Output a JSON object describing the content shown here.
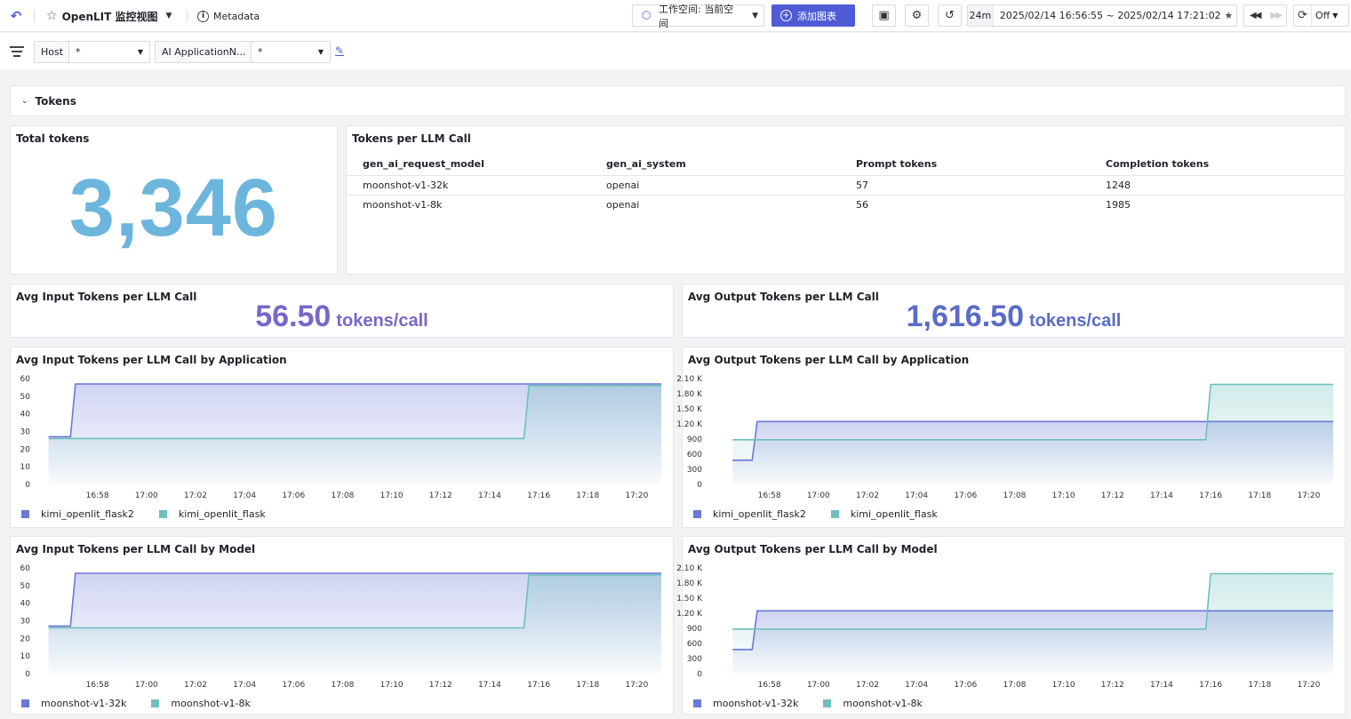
{
  "header": {
    "title": "OpenLIT 监控视图",
    "metadata_label": "Metadata",
    "workspace_label": "工作空间: 当前空间",
    "add_chart_label": "添加图表",
    "time_quick": "24m",
    "time_range": "2025/02/14 16:56:55 ~ 2025/02/14 17:21:02",
    "refresh_label": "Off"
  },
  "filters": [
    {
      "label": "Host",
      "value": "*"
    },
    {
      "label": "AI ApplicationN...",
      "value": "*"
    }
  ],
  "row": {
    "title": "Tokens"
  },
  "total_tokens": {
    "title": "Total tokens",
    "value": "3,346"
  },
  "tokens_table": {
    "title": "Tokens per LLM Call",
    "columns": [
      "gen_ai_request_model",
      "gen_ai_system",
      "Prompt tokens",
      "Completion tokens"
    ],
    "rows": [
      [
        "moonshot-v1-32k",
        "openai",
        "57",
        "1248"
      ],
      [
        "moonshot-v1-8k",
        "openai",
        "56",
        "1985"
      ]
    ]
  },
  "avg_input": {
    "title": "Avg Input Tokens per LLM Call",
    "value": "56.50",
    "unit": "tokens/call"
  },
  "avg_output": {
    "title": "Avg Output Tokens per LLM Call",
    "value": "1,616.50",
    "unit": "tokens/call"
  },
  "colors": {
    "series_a": "#6a78d8",
    "series_b": "#6fbfbe",
    "accent": "#4f5bd5"
  },
  "chart_data": [
    {
      "type": "line",
      "title": "Avg Input Tokens per LLM Call by Application",
      "x_ticks": [
        "16:58",
        "17:00",
        "17:02",
        "17:04",
        "17:06",
        "17:08",
        "17:10",
        "17:12",
        "17:14",
        "17:16",
        "17:18",
        "17:20"
      ],
      "y_ticks": [
        "0",
        "10",
        "20",
        "30",
        "40",
        "50",
        "60"
      ],
      "ylim": [
        0,
        60
      ],
      "xlim": [
        56.2,
        81.0
      ],
      "series": [
        {
          "name": "kimi_openlit_flask2",
          "color": "#6a78d8",
          "x": [
            56.0,
            56.9,
            57.1,
            81.0
          ],
          "y": [
            27,
            27,
            57,
            57
          ]
        },
        {
          "name": "kimi_openlit_flask",
          "color": "#6fbfbe",
          "x": [
            56.0,
            75.4,
            75.6,
            81.0
          ],
          "y": [
            26,
            26,
            56,
            56
          ]
        }
      ]
    },
    {
      "type": "line",
      "title": "Avg Output Tokens per LLM Call by Application",
      "x_ticks": [
        "16:58",
        "17:00",
        "17:02",
        "17:04",
        "17:06",
        "17:08",
        "17:10",
        "17:12",
        "17:14",
        "17:16",
        "17:18",
        "17:20"
      ],
      "y_ticks": [
        "0",
        "300",
        "600",
        "900",
        "1.20 K",
        "1.50 K",
        "1.80 K",
        "2.10 K"
      ],
      "ylim": [
        0,
        2100
      ],
      "xlim": [
        56.2,
        81.0
      ],
      "series": [
        {
          "name": "kimi_openlit_flask2",
          "color": "#6a78d8",
          "x": [
            56.5,
            57.3,
            57.5,
            81.0
          ],
          "y": [
            480,
            480,
            1248,
            1248
          ]
        },
        {
          "name": "kimi_openlit_flask",
          "color": "#6fbfbe",
          "x": [
            56.5,
            75.8,
            76.0,
            81.0
          ],
          "y": [
            885,
            885,
            1985,
            1985
          ]
        }
      ]
    },
    {
      "type": "line",
      "title": "Avg Input Tokens per LLM Call by Model",
      "x_ticks": [
        "16:58",
        "17:00",
        "17:02",
        "17:04",
        "17:06",
        "17:08",
        "17:10",
        "17:12",
        "17:14",
        "17:16",
        "17:18",
        "17:20"
      ],
      "y_ticks": [
        "0",
        "10",
        "20",
        "30",
        "40",
        "50",
        "60"
      ],
      "ylim": [
        0,
        60
      ],
      "xlim": [
        56.2,
        81.0
      ],
      "series": [
        {
          "name": "moonshot-v1-32k",
          "color": "#6a78d8",
          "x": [
            56.0,
            56.9,
            57.1,
            81.0
          ],
          "y": [
            27,
            27,
            57,
            57
          ]
        },
        {
          "name": "moonshot-v1-8k",
          "color": "#6fbfbe",
          "x": [
            56.0,
            75.4,
            75.6,
            81.0
          ],
          "y": [
            26,
            26,
            56,
            56
          ]
        }
      ]
    },
    {
      "type": "line",
      "title": "Avg Output Tokens per LLM Call by Model",
      "x_ticks": [
        "16:58",
        "17:00",
        "17:02",
        "17:04",
        "17:06",
        "17:08",
        "17:10",
        "17:12",
        "17:14",
        "17:16",
        "17:18",
        "17:20"
      ],
      "y_ticks": [
        "0",
        "300",
        "600",
        "900",
        "1.20 K",
        "1.50 K",
        "1.80 K",
        "2.10 K"
      ],
      "ylim": [
        0,
        2100
      ],
      "xlim": [
        56.2,
        81.0
      ],
      "series": [
        {
          "name": "moonshot-v1-32k",
          "color": "#6a78d8",
          "x": [
            56.5,
            57.3,
            57.5,
            81.0
          ],
          "y": [
            480,
            480,
            1248,
            1248
          ]
        },
        {
          "name": "moonshot-v1-8k",
          "color": "#6fbfbe",
          "x": [
            56.5,
            75.8,
            76.0,
            81.0
          ],
          "y": [
            885,
            885,
            1985,
            1985
          ]
        }
      ]
    }
  ]
}
